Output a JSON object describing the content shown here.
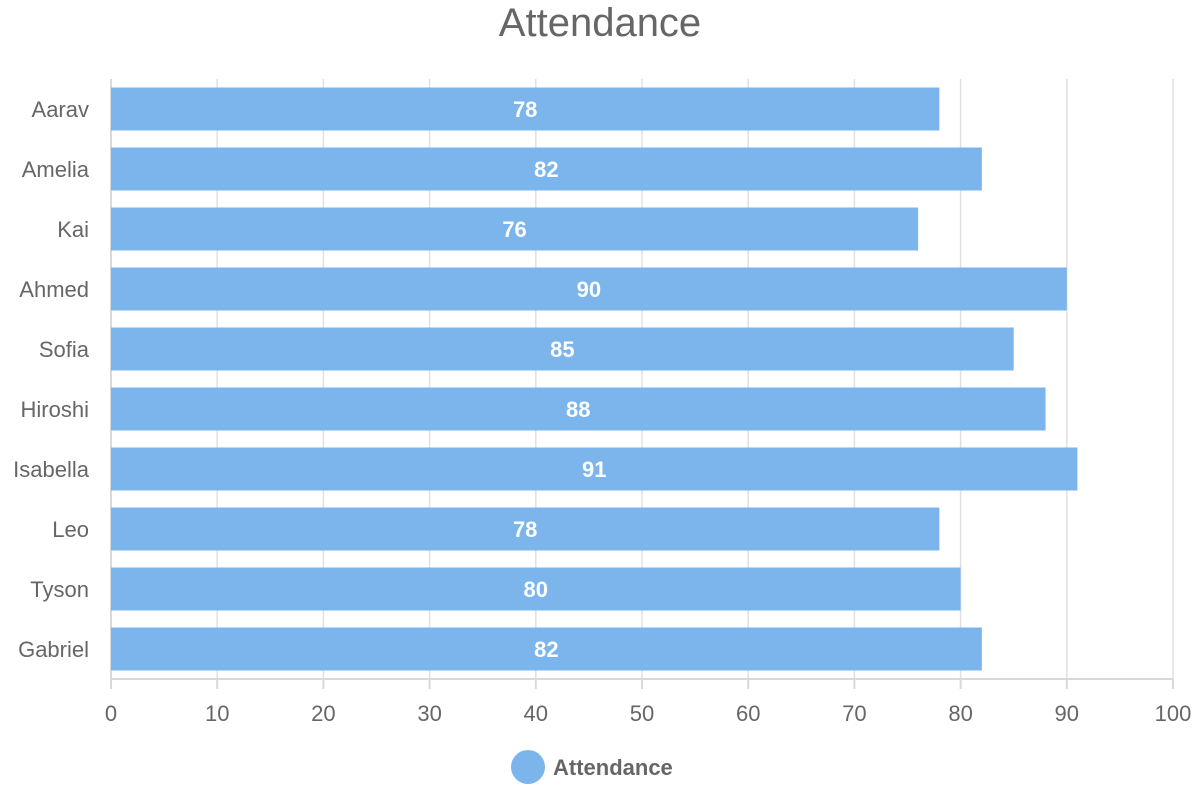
{
  "chart_data": {
    "type": "bar",
    "orientation": "horizontal",
    "title": "Attendance",
    "categories": [
      "Aarav",
      "Amelia",
      "Kai",
      "Ahmed",
      "Sofia",
      "Hiroshi",
      "Isabella",
      "Leo",
      "Tyson",
      "Gabriel"
    ],
    "series": [
      {
        "name": "Attendance",
        "values": [
          78,
          82,
          76,
          90,
          85,
          88,
          91,
          78,
          80,
          82
        ],
        "color": "#7cb5ec"
      }
    ],
    "xlim": [
      0,
      100
    ],
    "x_ticks": [
      0,
      10,
      20,
      30,
      40,
      50,
      60,
      70,
      80,
      90,
      100
    ],
    "xlabel": "",
    "ylabel": "",
    "grid": true,
    "data_labels": true,
    "legend_position": "bottom-center"
  }
}
